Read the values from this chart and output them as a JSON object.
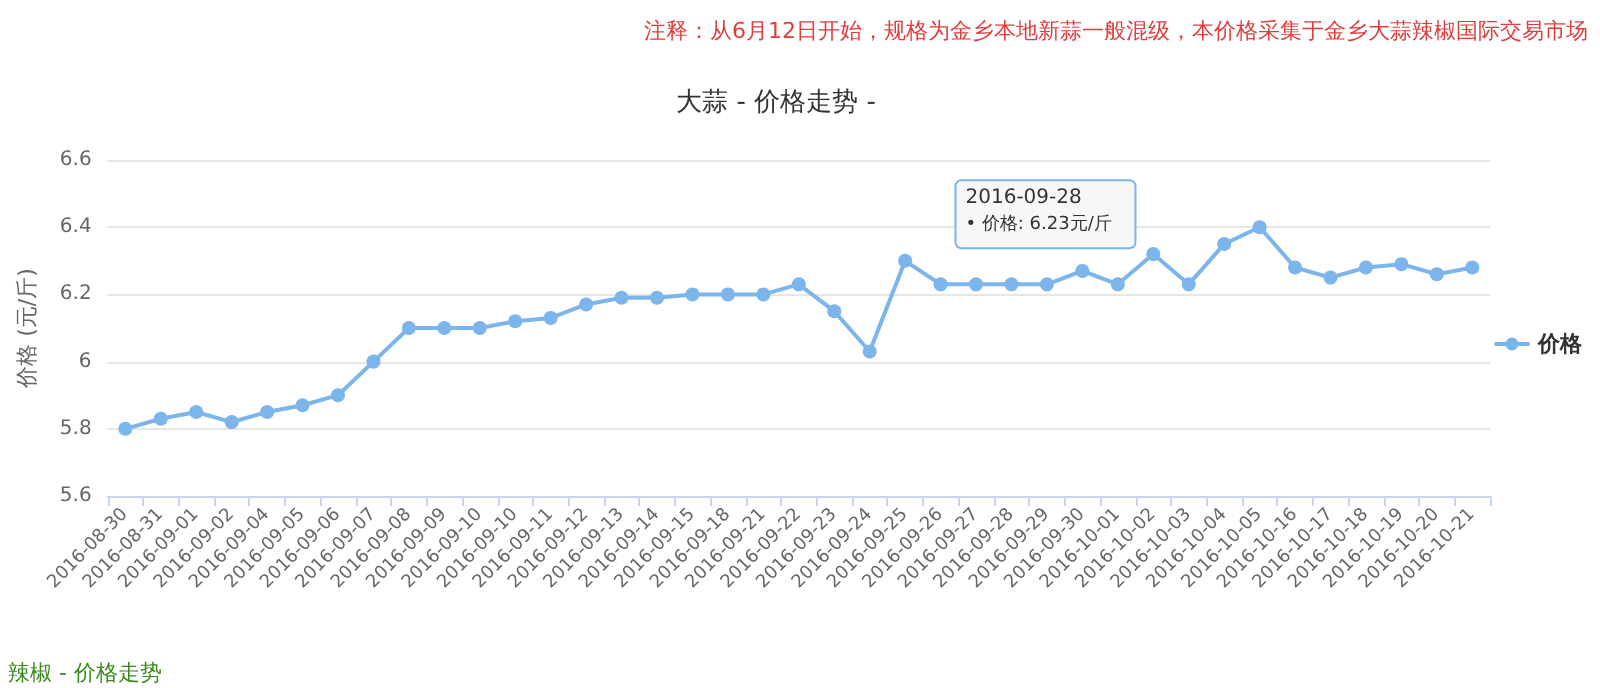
{
  "chart_data": {
    "type": "line",
    "title": "大蒜 - 价格走势 -",
    "ylabel": "价格 (元/斤)",
    "annotations": [
      "注释：从6月12日开始，规格为金乡本地新蒜一般混级，本价格采集于金乡大蒜辣椒国际交易市场",
      {
        "text": "2016-09-28\n• 价格: 6.23元/斤",
        "x": "2016-09-28",
        "y": 6.23
      },
      "辣椒 - 价格走势"
    ],
    "categories": [
      "2016-08-30",
      "2016-08-31",
      "2016-09-01",
      "2016-09-02",
      "2016-09-04",
      "2016-09-05",
      "2016-09-06",
      "2016-09-07",
      "2016-09-08",
      "2016-09-09",
      "2016-09-10",
      "2016-09-10",
      "2016-09-11",
      "2016-09-12",
      "2016-09-13",
      "2016-09-14",
      "2016-09-15",
      "2016-09-18",
      "2016-09-21",
      "2016-09-22",
      "2016-09-23",
      "2016-09-24",
      "2016-09-25",
      "2016-09-26",
      "2016-09-27",
      "2016-09-28",
      "2016-09-29",
      "2016-09-30",
      "2016-10-01",
      "2016-10-02",
      "2016-10-03",
      "2016-10-04",
      "2016-10-05",
      "2016-10-16",
      "2016-10-17",
      "2016-10-18",
      "2016-10-19",
      "2016-10-20",
      "2016-10-21"
    ],
    "series": [
      {
        "name": "价格",
        "color": "#7cb5ec",
        "values": [
          5.8,
          5.83,
          5.85,
          5.82,
          5.85,
          5.87,
          5.9,
          6.0,
          6.1,
          6.1,
          6.1,
          6.12,
          6.13,
          6.17,
          6.19,
          6.19,
          6.2,
          6.2,
          6.2,
          6.23,
          6.15,
          6.03,
          6.3,
          6.23,
          6.23,
          6.23,
          6.23,
          6.27,
          6.23,
          6.32,
          6.23,
          6.35,
          6.4,
          6.28,
          6.25,
          6.28,
          6.29,
          6.26,
          6.28
        ]
      }
    ],
    "ylim": [
      5.6,
      6.6
    ],
    "yticks": [
      5.6,
      5.8,
      6,
      6.2,
      6.4,
      6.6
    ],
    "grid": "y",
    "legend": "right",
    "marker": "circle",
    "line_style": "solid"
  }
}
